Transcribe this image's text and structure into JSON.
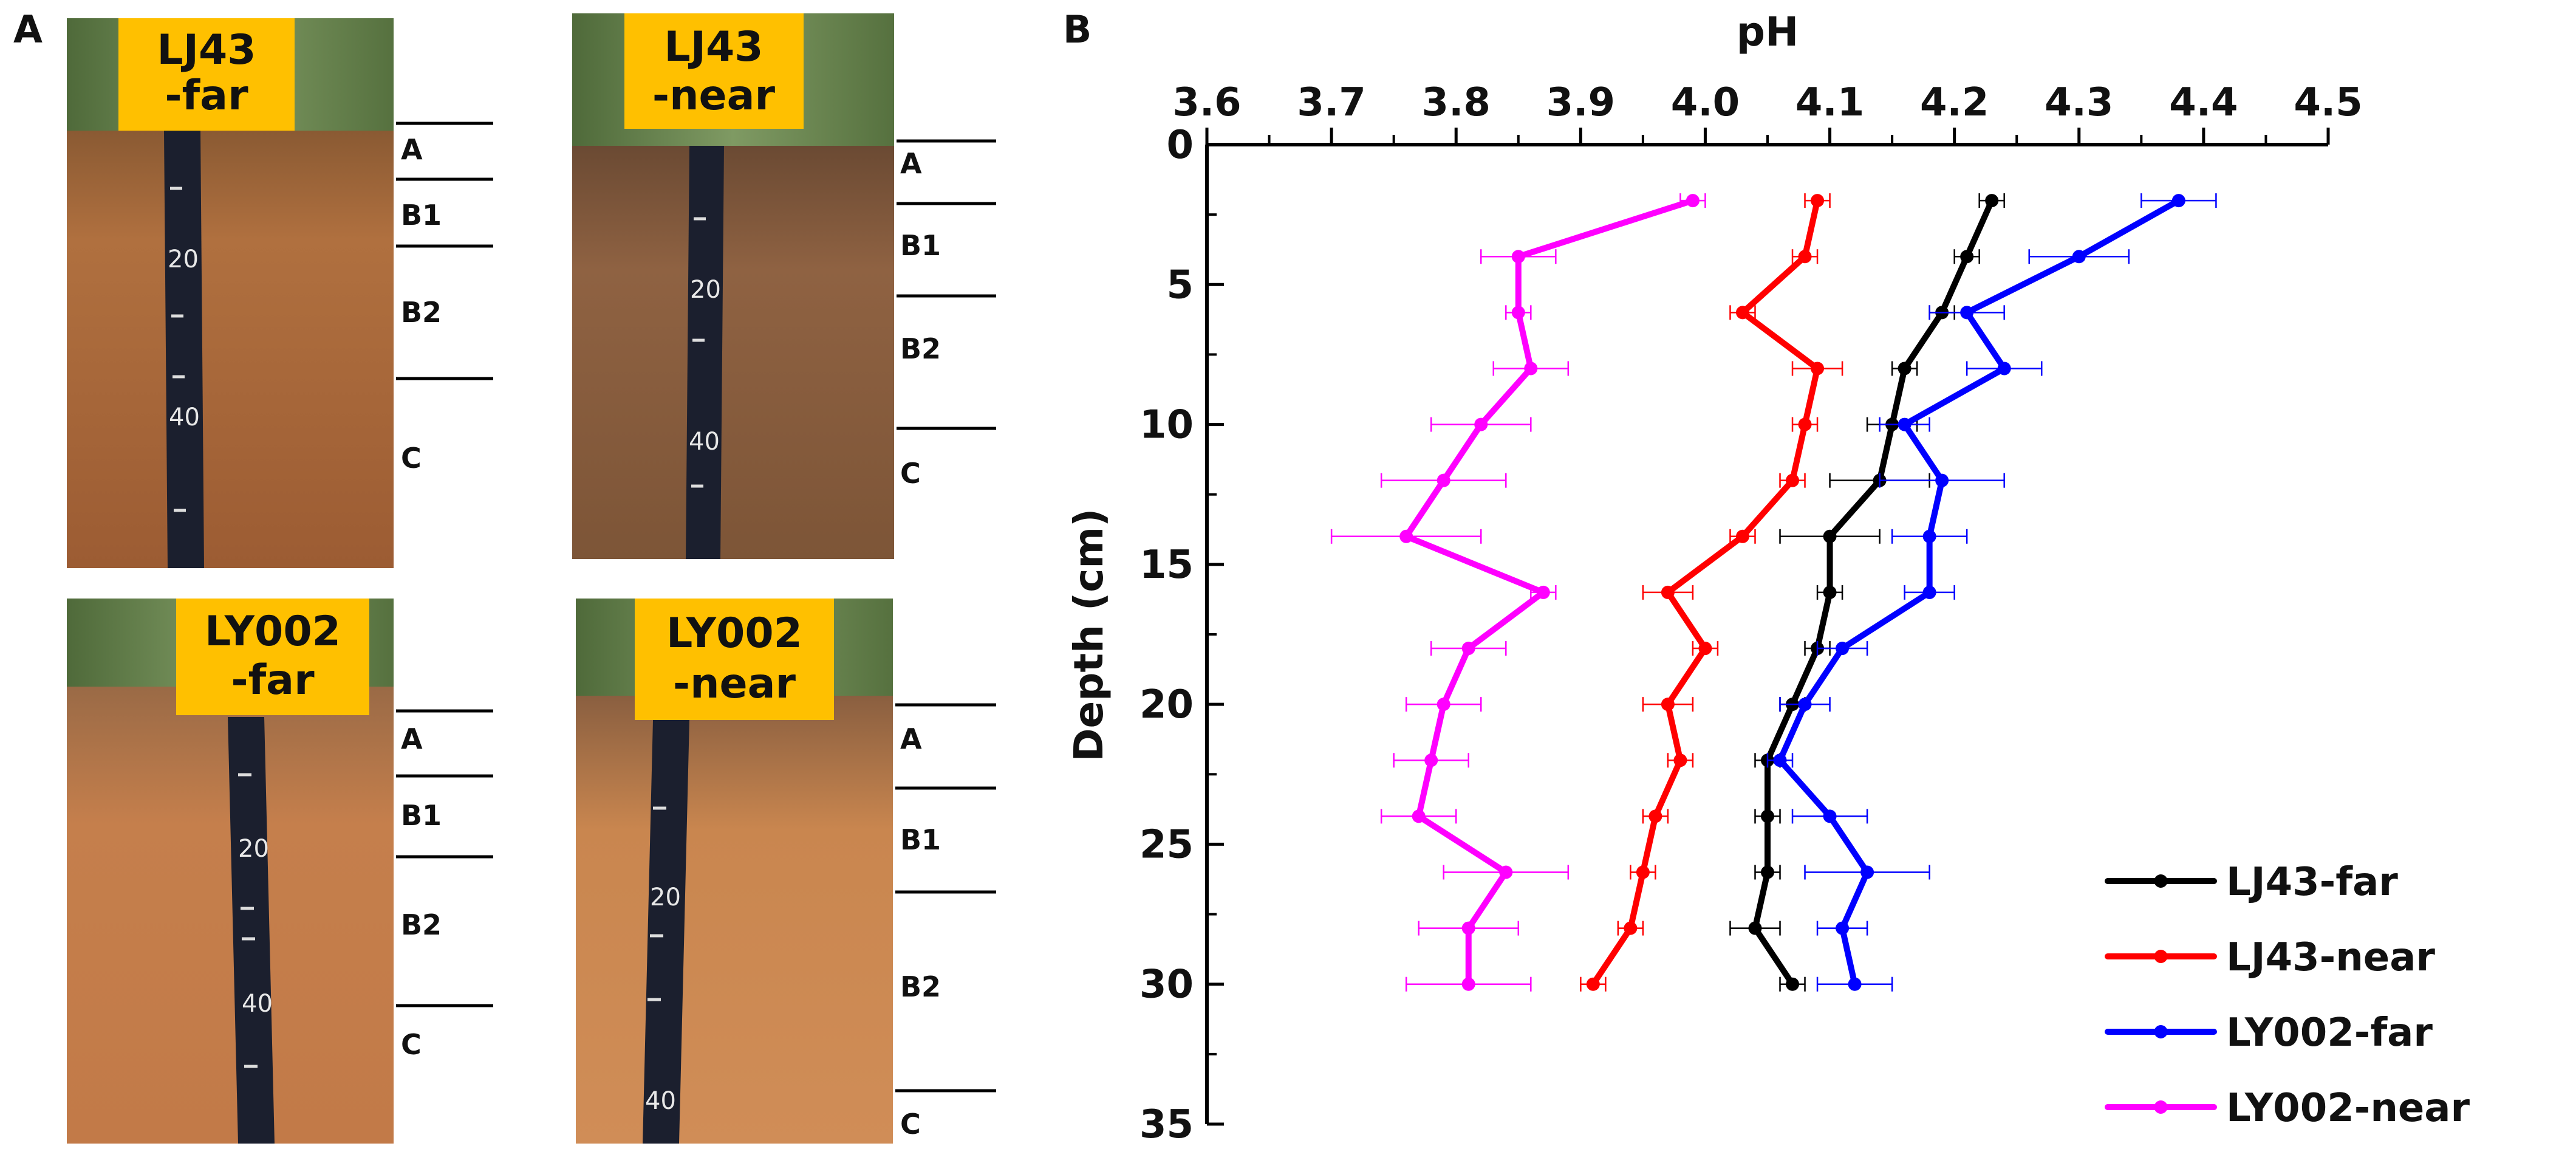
{
  "panels": {
    "a_label": "A",
    "b_label": "B"
  },
  "photos": [
    {
      "label_line1": "LJ43",
      "label_line2": "-far",
      "horizons": [
        "A",
        "B1",
        "B2",
        "C"
      ],
      "ruler_marks": [
        "20",
        "40"
      ]
    },
    {
      "label_line1": "LJ43",
      "label_line2": "-near",
      "horizons": [
        "A",
        "B1",
        "B2",
        "C"
      ],
      "ruler_marks": [
        "20",
        "40"
      ]
    },
    {
      "label_line1": "LY002",
      "label_line2": "-far",
      "horizons": [
        "A",
        "B1",
        "B2",
        "C"
      ],
      "ruler_marks": [
        "20",
        "40"
      ]
    },
    {
      "label_line1": "LY002",
      "label_line2": "-near",
      "horizons": [
        "A",
        "B1",
        "B2",
        "C"
      ],
      "ruler_marks": [
        "20",
        "40"
      ]
    }
  ],
  "chart_data": {
    "type": "line",
    "title": "",
    "xlabel": "pH",
    "ylabel": "Depth (cm)",
    "x_axis_position": "top",
    "y_axis_inverted": true,
    "xlim": [
      3.6,
      4.5
    ],
    "ylim": [
      0,
      35
    ],
    "x_ticks": [
      "3.6",
      "3.7",
      "3.8",
      "3.9",
      "4.0",
      "4.1",
      "4.2",
      "4.3",
      "4.4",
      "4.5"
    ],
    "y_ticks": [
      "0",
      "5",
      "10",
      "15",
      "20",
      "25",
      "30",
      "35"
    ],
    "grid": false,
    "legend_position": "bottom-right",
    "error_bars": "horizontal",
    "series": [
      {
        "name": "LJ43-far",
        "color": "#000000",
        "depth": [
          2,
          4,
          6,
          8,
          10,
          12,
          14,
          16,
          18,
          20,
          22,
          24,
          26,
          28,
          30
        ],
        "ph": [
          4.23,
          4.21,
          4.19,
          4.16,
          4.15,
          4.14,
          4.1,
          4.1,
          4.09,
          4.07,
          4.05,
          4.05,
          4.05,
          4.04,
          4.07
        ],
        "error": [
          0.01,
          0.01,
          0.01,
          0.01,
          0.02,
          0.04,
          0.04,
          0.01,
          0.01,
          0.01,
          0.01,
          0.01,
          0.01,
          0.02,
          0.01
        ]
      },
      {
        "name": "LJ43-near",
        "color": "#ff0000",
        "depth": [
          2,
          4,
          6,
          8,
          10,
          12,
          14,
          16,
          18,
          20,
          22,
          24,
          26,
          28,
          30
        ],
        "ph": [
          4.09,
          4.08,
          4.03,
          4.09,
          4.08,
          4.07,
          4.03,
          3.97,
          4.0,
          3.97,
          3.98,
          3.96,
          3.95,
          3.94,
          3.91
        ],
        "error": [
          0.01,
          0.01,
          0.01,
          0.02,
          0.01,
          0.01,
          0.01,
          0.02,
          0.01,
          0.02,
          0.01,
          0.01,
          0.01,
          0.01,
          0.01
        ]
      },
      {
        "name": "LY002-far",
        "color": "#0000ff",
        "depth": [
          2,
          4,
          6,
          8,
          10,
          12,
          14,
          16,
          18,
          20,
          22,
          24,
          26,
          28,
          30
        ],
        "ph": [
          4.38,
          4.3,
          4.21,
          4.24,
          4.16,
          4.19,
          4.18,
          4.18,
          4.11,
          4.08,
          4.06,
          4.1,
          4.13,
          4.11,
          4.12
        ],
        "error": [
          0.03,
          0.04,
          0.03,
          0.03,
          0.02,
          0.05,
          0.03,
          0.02,
          0.02,
          0.02,
          0.01,
          0.03,
          0.05,
          0.02,
          0.03
        ]
      },
      {
        "name": "LY002-near",
        "color": "#ff00ff",
        "depth": [
          2,
          4,
          6,
          8,
          10,
          12,
          14,
          16,
          18,
          20,
          22,
          24,
          26,
          28,
          30
        ],
        "ph": [
          3.99,
          3.85,
          3.85,
          3.86,
          3.82,
          3.79,
          3.76,
          3.87,
          3.81,
          3.79,
          3.78,
          3.77,
          3.84,
          3.81,
          3.81
        ],
        "error": [
          0.01,
          0.03,
          0.01,
          0.03,
          0.04,
          0.05,
          0.06,
          0.01,
          0.03,
          0.03,
          0.03,
          0.03,
          0.05,
          0.04,
          0.05
        ]
      }
    ]
  }
}
